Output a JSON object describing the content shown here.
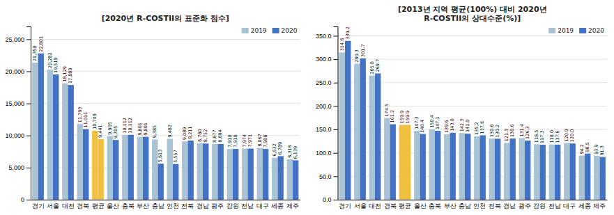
{
  "chart_data": [
    {
      "type": "bar",
      "title": "[2020년 R-COSTII의 표준화 점수]",
      "categories": [
        "경기",
        "서울",
        "대전",
        "경북",
        "평균",
        "울산",
        "충북",
        "부산",
        "충남",
        "인천",
        "전북",
        "경남",
        "광주",
        "강원",
        "전남",
        "대구",
        "세종",
        "제주"
      ],
      "series": [
        {
          "name": "2019",
          "color": "#A8C4D4",
          "colors": [
            "#A8C4D4",
            "#A8C4D4",
            "#A8C4D4",
            "#A8C4D4",
            "#F0C040",
            "#A8C4D4",
            "#A8C4D4",
            "#A8C4D4",
            "#A8C4D4",
            "#A8C4D4",
            "#A8C4D4",
            "#A8C4D4",
            "#A8C4D4",
            "#A8C4D4",
            "#A8C4D4",
            "#A8C4D4",
            "#A8C4D4",
            "#A8C4D4"
          ],
          "values": [
            21350,
            20282,
            18129,
            11793,
            10749,
            9905,
            10112,
            9801,
            9385,
            9482,
            9089,
            8780,
            8677,
            7910,
            7974,
            8067,
            6532,
            6316
          ],
          "value_labels": [
            "21,350",
            "20,282",
            "18,129",
            "11,793",
            "10,749",
            "9,905",
            "10,112",
            "9,801",
            "9,385",
            "9,482",
            "9,089",
            "8,780",
            "8,677",
            "7,910",
            "7,974",
            "8,067",
            "6,532",
            "6,316"
          ]
        },
        {
          "name": "2020",
          "color": "#4472C4",
          "colors": [
            "#4472C4",
            "#4472C4",
            "#4472C4",
            "#4472C4",
            "#F0C040",
            "#4472C4",
            "#4472C4",
            "#4472C4",
            "#4472C4",
            "#4472C4",
            "#4472C4",
            "#4472C4",
            "#4472C4",
            "#4472C4",
            "#4472C4",
            "#4472C4",
            "#4472C4",
            "#4472C4"
          ],
          "values": [
            22801,
            19519,
            17880,
            11011,
            9441,
            9305,
            10112,
            9801,
            5613,
            5557,
            9211,
            8752,
            8694,
            7910,
            7971,
            7908,
            6789,
            6139
          ],
          "value_labels": [
            "22,801",
            "19,519",
            "17,880",
            "11,011",
            "9,441",
            "9,305",
            "10,112",
            "9,801",
            "5,613",
            "5,557",
            "9,211",
            "8,752",
            "8,694",
            "7,910",
            "7,971",
            "7,908",
            "6,789",
            "6,139"
          ]
        }
      ],
      "ylim": [
        0,
        27000
      ],
      "yticks": [
        0,
        {
          "value": 5000,
          "label": "5,000"
        },
        {
          "value": 10000,
          "label": "10,000"
        },
        {
          "value": 15000,
          "label": "15,000"
        },
        {
          "value": 20000,
          "label": "20,000"
        },
        {
          "value": 25000,
          "label": "25,000"
        }
      ],
      "grid": true,
      "legend": "upper right",
      "data_labels": true
    },
    {
      "type": "bar",
      "title": "[2013년 지역 평균(100%) 대비 2020년\nR-COSTII의 상대수준(%)]",
      "categories": [
        "경기",
        "서울",
        "대전",
        "경북",
        "평균",
        "울산",
        "충북",
        "부산",
        "충남",
        "인천",
        "전북",
        "경남",
        "광주",
        "강원",
        "전남",
        "대구",
        "세종",
        "제주"
      ],
      "series": [
        {
          "name": "2019",
          "color": "#A8C4D4",
          "colors": [
            "#A8C4D4",
            "#A8C4D4",
            "#A8C4D4",
            "#A8C4D4",
            "#F0C040",
            "#A8C4D4",
            "#A8C4D4",
            "#A8C4D4",
            "#A8C4D4",
            "#A8C4D4",
            "#A8C4D4",
            "#A8C4D4",
            "#A8C4D4",
            "#A8C4D4",
            "#A8C4D4",
            "#A8C4D4",
            "#A8C4D4",
            "#A8C4D4"
          ],
          "values": [
            314.6,
            290.3,
            265.0,
            174.5,
            159.9,
            147.3,
            150.4,
            139.6,
            142.3,
            135.2,
            130.6,
            121.3,
            131.4,
            118.5,
            118.0,
            120.9,
            94.2,
            93.9
          ],
          "value_labels": [
            "314.6",
            "290.3",
            "265.0",
            "174.5",
            "159.9",
            "147.3",
            "150.4",
            "139.6",
            "142.3",
            "135.2",
            "130.6",
            "121.3",
            "131.4",
            "118.5",
            "118.0",
            "120.9",
            "94.2",
            "93.9"
          ]
        },
        {
          "name": "2020",
          "color": "#4472C4",
          "colors": [
            "#4472C4",
            "#4472C4",
            "#4472C4",
            "#4472C4",
            "#F0C040",
            "#4472C4",
            "#4472C4",
            "#4472C4",
            "#4472C4",
            "#4472C4",
            "#4472C4",
            "#4472C4",
            "#4472C4",
            "#4472C4",
            "#4472C4",
            "#4472C4",
            "#4472C4",
            "#4472C4"
          ],
          "values": [
            339.2,
            301.7,
            269.7,
            161.2,
            159.9,
            140.4,
            147.1,
            143.0,
            141.0,
            137.6,
            130.2,
            130.6,
            126.3,
            117.3,
            117.6,
            120.0,
            98.5,
            91.3
          ],
          "value_labels": [
            "339.2",
            "301.7",
            "269.7",
            "161.2",
            "159.9",
            "140.4",
            "147.1",
            "143.0",
            "141.0",
            "137.6",
            "130.2",
            "130.6",
            "126.3",
            "117.3",
            "117.6",
            "120.0",
            "98.5",
            "91.3"
          ]
        }
      ],
      "ylim": [
        0,
        370
      ],
      "yticks": [
        {
          "value": 0,
          "label": "0.0"
        },
        {
          "value": 50,
          "label": "50.0"
        },
        {
          "value": 100,
          "label": "100.0"
        },
        {
          "value": 150,
          "label": "150.0"
        },
        {
          "value": 200,
          "label": "200.0"
        },
        {
          "value": 250,
          "label": "250.0"
        },
        {
          "value": 300,
          "label": "300.0"
        },
        {
          "value": 350,
          "label": "350.0"
        }
      ],
      "grid": true,
      "legend": "upper right",
      "data_labels": true
    }
  ]
}
